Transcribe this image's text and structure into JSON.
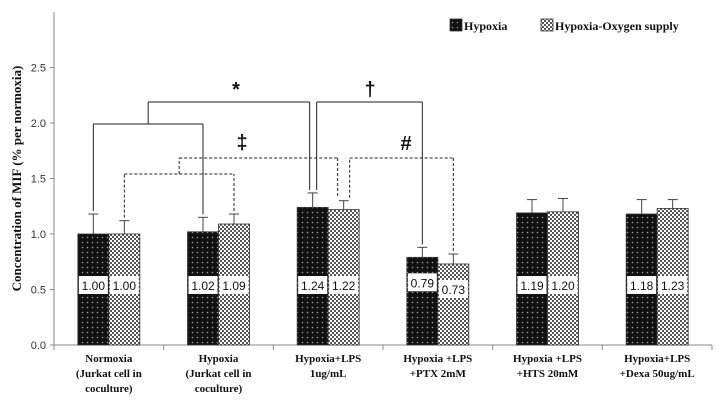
{
  "chart_data": {
    "type": "bar",
    "ylabel": "Concentration of MIF (% per normoxia)",
    "ylim": [
      0,
      3.0
    ],
    "yticks": [
      "0.0",
      "0.5",
      "1.0",
      "1.5",
      "2.0",
      "2.5"
    ],
    "categories": [
      [
        "Normoxia",
        "(Jurkat cell in",
        "coculture)"
      ],
      [
        "Hypoxia",
        "(Jurkat cell in",
        "coculture)"
      ],
      [
        "Hypoxia+LPS",
        "1ug/mL"
      ],
      [
        "Hypoxia +LPS",
        "+PTX  2mM"
      ],
      [
        "Hypoxia +LPS",
        "+HTS 20mM"
      ],
      [
        "Hypoxia+LPS",
        "+Dexa 50ug/mL"
      ]
    ],
    "series": [
      {
        "name": "Hypoxia",
        "values": [
          1.0,
          1.02,
          1.24,
          0.79,
          1.19,
          1.18
        ],
        "errors": [
          0.18,
          0.13,
          0.13,
          0.09,
          0.12,
          0.13
        ],
        "labels": [
          "1.00",
          "1.02",
          "1.24",
          "0.79",
          "1.19",
          "1.18"
        ],
        "pattern": "dark-dots"
      },
      {
        "name": "Hypoxia-Oxygen supply",
        "values": [
          1.0,
          1.09,
          1.22,
          0.73,
          1.2,
          1.23
        ],
        "errors": [
          0.12,
          0.09,
          0.08,
          0.09,
          0.12,
          0.08
        ],
        "labels": [
          "1.00",
          "1.09",
          "1.22",
          "0.73",
          "1.20",
          "1.23"
        ],
        "pattern": "checker"
      }
    ],
    "legend": "top-right",
    "grid": false,
    "annotations": [
      {
        "symbol": "*",
        "from": [
          0,
          1
        ],
        "to": 2,
        "style": "solid",
        "series": 0
      },
      {
        "symbol": "†",
        "from": [
          2
        ],
        "to": 3,
        "style": "solid",
        "series": 0
      },
      {
        "symbol": "‡",
        "from": [
          0,
          1
        ],
        "to": 2,
        "style": "dashed",
        "series": 1
      },
      {
        "symbol": "#",
        "from": [
          2
        ],
        "to": 3,
        "style": "dashed",
        "series": 1
      }
    ]
  }
}
